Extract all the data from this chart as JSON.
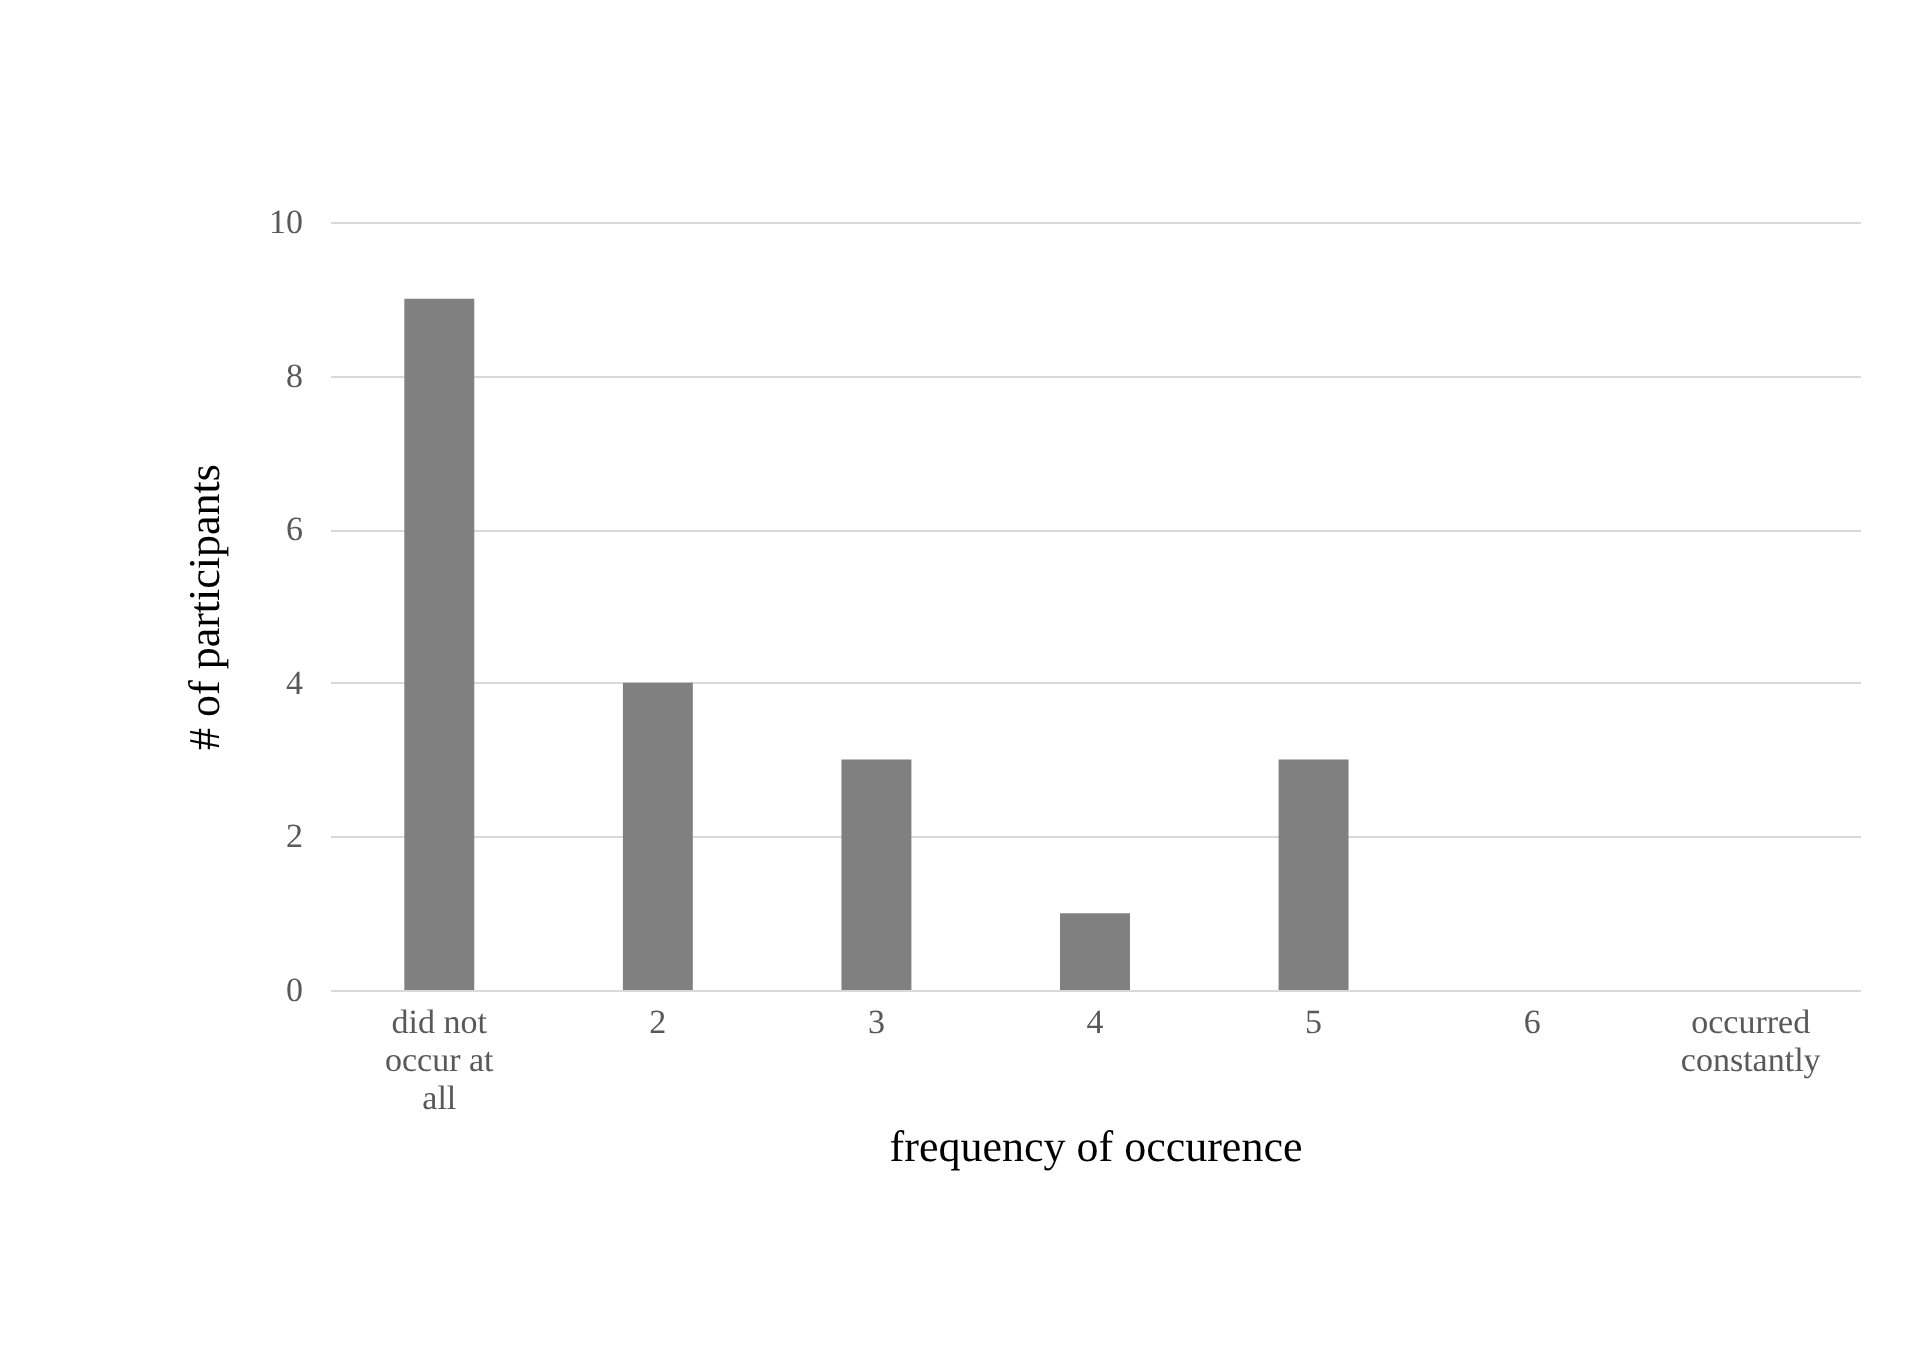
{
  "chart_data": {
    "type": "bar",
    "xlabel": "frequency of occurence",
    "ylabel": "# of participants",
    "categories": [
      "did not occur at all",
      "2",
      "3",
      "4",
      "5",
      "6",
      "occurred constantly"
    ],
    "values": [
      9,
      4,
      3,
      1,
      3,
      0,
      0
    ],
    "color": "#808080",
    "ylim": [
      0,
      10
    ],
    "yticks": [
      0,
      2,
      4,
      6,
      8,
      10
    ],
    "grid": "y"
  }
}
